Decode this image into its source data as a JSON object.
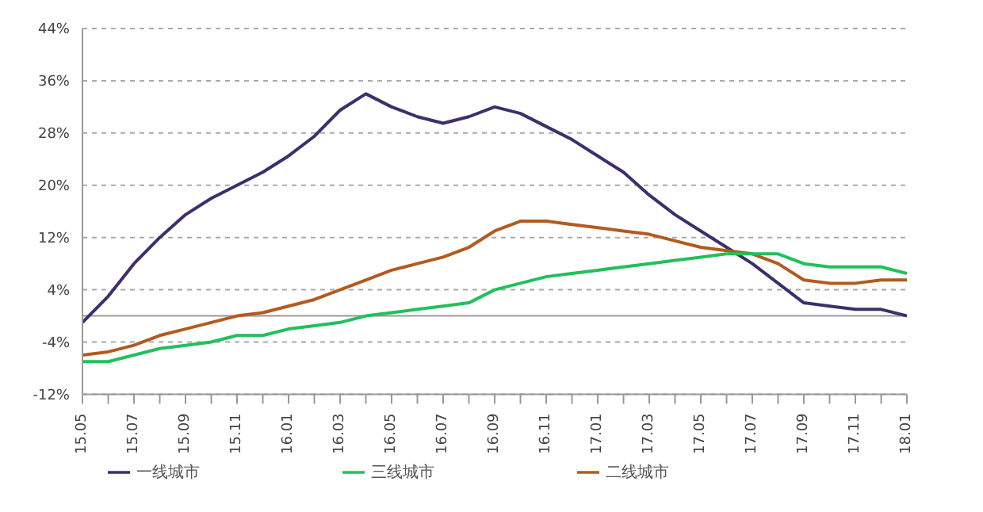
{
  "chart_data": {
    "type": "line",
    "categories": [
      "15.05",
      null,
      "15.07",
      null,
      "15.09",
      null,
      "15.11",
      null,
      "16.01",
      null,
      "16.03",
      null,
      "16.05",
      null,
      "16.07",
      null,
      "16.09",
      null,
      "16.11",
      null,
      "17.01",
      null,
      "17.03",
      null,
      "17.05",
      null,
      "17.07",
      null,
      "17.09",
      null,
      "17.11",
      null,
      "18.01"
    ],
    "series": [
      {
        "name": "一线城市",
        "color": "#3d2f6b",
        "values": [
          -1,
          3,
          8,
          12,
          15.5,
          18,
          20,
          22,
          24.5,
          27.5,
          31.5,
          34,
          32,
          30.5,
          29.5,
          30.5,
          32,
          31,
          29,
          27,
          24.5,
          22,
          18.5,
          15.5,
          13,
          10.5,
          8,
          5,
          2,
          1.5,
          1,
          1,
          0
        ]
      },
      {
        "name": "二线城市",
        "color": "#b35a1f",
        "values": [
          -6,
          -5.5,
          -4.5,
          -3,
          -2,
          -1,
          0,
          0.5,
          1.5,
          2.5,
          4,
          5.5,
          7,
          8,
          9,
          10.5,
          13,
          14.5,
          14.5,
          14,
          13.5,
          13,
          12.5,
          11.5,
          10.5,
          10,
          9.5,
          8,
          5.5,
          5,
          5,
          5.5,
          5.5
        ]
      },
      {
        "name": "三线城市",
        "color": "#22c05a",
        "values": [
          -7,
          -7,
          -6,
          -5,
          -4.5,
          -4,
          -3,
          -3,
          -2,
          -1.5,
          -1,
          0,
          0.5,
          1,
          1.5,
          2,
          4,
          5,
          6,
          6.5,
          7,
          7.5,
          8,
          8.5,
          9,
          9.5,
          9.5,
          9.5,
          8,
          7.5,
          7.5,
          7.5,
          6.5
        ]
      }
    ],
    "ylim": [
      -12,
      44
    ],
    "yticks": [
      {
        "value": -12,
        "label": "-12%"
      },
      {
        "value": -4,
        "label": "-4%"
      },
      {
        "value": 4,
        "label": "4%"
      },
      {
        "value": 12,
        "label": "12%"
      },
      {
        "value": 20,
        "label": "20%"
      },
      {
        "value": 28,
        "label": "28%"
      },
      {
        "value": 36,
        "label": "36%"
      },
      {
        "value": 44,
        "label": "44%"
      }
    ],
    "grid": "y",
    "legend": "bottom",
    "marker": "none",
    "line_style": "solid"
  }
}
